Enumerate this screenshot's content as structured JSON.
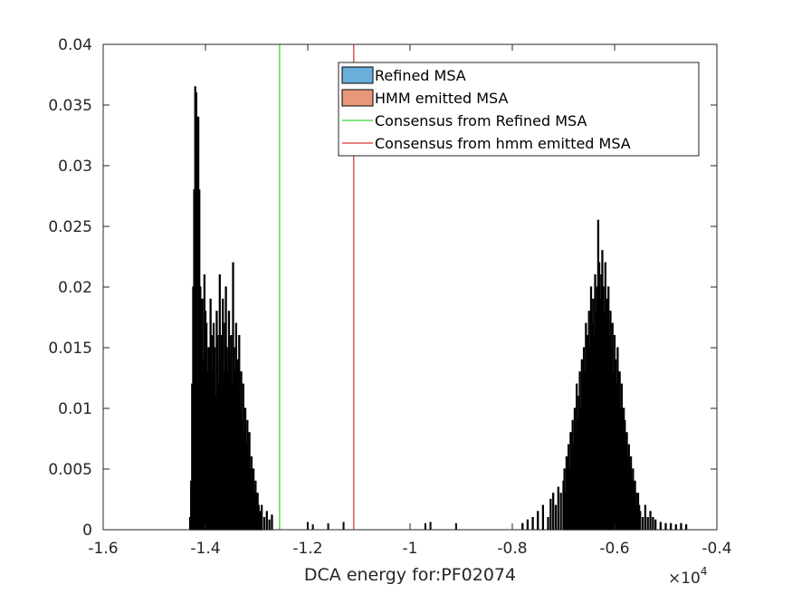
{
  "chart_data": {
    "type": "bar",
    "title": "",
    "xlabel": "DCA energy for:PF02074",
    "ylabel": "",
    "x_exponent_label": "×10",
    "x_exponent_power": "4",
    "xlim": [
      -1.6,
      -0.4
    ],
    "ylim": [
      0,
      0.04
    ],
    "x_ticks": [
      -1.6,
      -1.4,
      -1.2,
      -1,
      -0.8,
      -0.6,
      -0.4
    ],
    "x_tick_labels": [
      "-1.6",
      "-1.4",
      "-1.2",
      "-1",
      "-0.8",
      "-0.6",
      "-0.4"
    ],
    "y_ticks": [
      0,
      0.005,
      0.01,
      0.015,
      0.02,
      0.025,
      0.03,
      0.035,
      0.04
    ],
    "y_tick_labels": [
      "0",
      "0.005",
      "0.01",
      "0.015",
      "0.02",
      "0.025",
      "0.03",
      "0.035",
      "0.04"
    ],
    "grid": false,
    "legend_position": "top-right",
    "series": [
      {
        "name": "Refined MSA",
        "color": "#6aaedb",
        "x": [
          -1.43,
          -1.428,
          -1.426,
          -1.424,
          -1.422,
          -1.42,
          -1.418,
          -1.416,
          -1.414,
          -1.412,
          -1.41,
          -1.408,
          -1.406,
          -1.404,
          -1.402,
          -1.4,
          -1.398,
          -1.396,
          -1.394,
          -1.392,
          -1.39,
          -1.388,
          -1.386,
          -1.384,
          -1.382,
          -1.38,
          -1.378,
          -1.376,
          -1.374,
          -1.372,
          -1.37,
          -1.368,
          -1.366,
          -1.364,
          -1.362,
          -1.36,
          -1.358,
          -1.356,
          -1.354,
          -1.352,
          -1.35,
          -1.348,
          -1.346,
          -1.344,
          -1.342,
          -1.34,
          -1.338,
          -1.336,
          -1.334,
          -1.332,
          -1.33,
          -1.328,
          -1.326,
          -1.324,
          -1.322,
          -1.32,
          -1.318,
          -1.316,
          -1.314,
          -1.312,
          -1.31,
          -1.308,
          -1.306,
          -1.304,
          -1.302,
          -1.3,
          -1.298,
          -1.296,
          -1.294,
          -1.292,
          -1.29,
          -1.285,
          -1.28,
          -1.275,
          -1.27
        ],
        "values": [
          0.001,
          0.004,
          0.012,
          0.02,
          0.028,
          0.0365,
          0.036,
          0.031,
          0.034,
          0.028,
          0.02,
          0.016,
          0.019,
          0.014,
          0.021,
          0.018,
          0.017,
          0.013,
          0.015,
          0.012,
          0.019,
          0.016,
          0.013,
          0.017,
          0.015,
          0.011,
          0.018,
          0.016,
          0.012,
          0.021,
          0.014,
          0.016,
          0.019,
          0.013,
          0.017,
          0.02,
          0.015,
          0.013,
          0.018,
          0.014,
          0.016,
          0.012,
          0.022,
          0.015,
          0.013,
          0.017,
          0.011,
          0.014,
          0.016,
          0.01,
          0.013,
          0.009,
          0.012,
          0.008,
          0.01,
          0.007,
          0.009,
          0.006,
          0.008,
          0.005,
          0.006,
          0.004,
          0.005,
          0.003,
          0.004,
          0.002,
          0.003,
          0.002,
          0.0015,
          0.001,
          0.002,
          0.001,
          0.0015,
          0.0008,
          0.0012
        ]
      },
      {
        "name": "HMM emitted MSA",
        "color": "#e8977a",
        "x": [
          -0.78,
          -0.77,
          -0.76,
          -0.75,
          -0.74,
          -0.73,
          -0.725,
          -0.72,
          -0.715,
          -0.71,
          -0.705,
          -0.7,
          -0.698,
          -0.696,
          -0.694,
          -0.692,
          -0.69,
          -0.688,
          -0.686,
          -0.684,
          -0.682,
          -0.68,
          -0.678,
          -0.676,
          -0.674,
          -0.672,
          -0.67,
          -0.668,
          -0.666,
          -0.664,
          -0.662,
          -0.66,
          -0.658,
          -0.656,
          -0.654,
          -0.652,
          -0.65,
          -0.648,
          -0.646,
          -0.644,
          -0.642,
          -0.64,
          -0.638,
          -0.636,
          -0.634,
          -0.632,
          -0.63,
          -0.628,
          -0.626,
          -0.624,
          -0.622,
          -0.62,
          -0.618,
          -0.616,
          -0.614,
          -0.612,
          -0.61,
          -0.608,
          -0.606,
          -0.604,
          -0.602,
          -0.6,
          -0.598,
          -0.596,
          -0.594,
          -0.592,
          -0.59,
          -0.588,
          -0.586,
          -0.584,
          -0.582,
          -0.58,
          -0.578,
          -0.576,
          -0.574,
          -0.572,
          -0.57,
          -0.568,
          -0.566,
          -0.564,
          -0.562,
          -0.56,
          -0.558,
          -0.556,
          -0.554,
          -0.552,
          -0.55,
          -0.545,
          -0.54,
          -0.535,
          -0.53,
          -0.525,
          -0.52,
          -0.51,
          -0.5,
          -0.49,
          -0.48,
          -0.47,
          -0.46
        ],
        "values": [
          0.0005,
          0.0008,
          0.001,
          0.0015,
          0.002,
          0.001,
          0.0025,
          0.003,
          0.002,
          0.0035,
          0.003,
          0.004,
          0.005,
          0.003,
          0.006,
          0.004,
          0.007,
          0.005,
          0.008,
          0.006,
          0.009,
          0.007,
          0.01,
          0.008,
          0.012,
          0.009,
          0.011,
          0.013,
          0.01,
          0.014,
          0.012,
          0.015,
          0.013,
          0.017,
          0.014,
          0.016,
          0.018,
          0.015,
          0.02,
          0.017,
          0.019,
          0.016,
          0.021,
          0.018,
          0.02,
          0.0255,
          0.022,
          0.019,
          0.021,
          0.023,
          0.02,
          0.018,
          0.022,
          0.017,
          0.019,
          0.02,
          0.016,
          0.018,
          0.015,
          0.017,
          0.013,
          0.016,
          0.014,
          0.012,
          0.015,
          0.011,
          0.013,
          0.01,
          0.012,
          0.008,
          0.01,
          0.009,
          0.007,
          0.008,
          0.006,
          0.007,
          0.005,
          0.006,
          0.004,
          0.005,
          0.003,
          0.004,
          0.003,
          0.002,
          0.003,
          0.002,
          0.0015,
          0.001,
          0.002,
          0.001,
          0.0015,
          0.001,
          0.0008,
          0.0006,
          0.0005,
          0.0005,
          0.0004,
          0.0005,
          0.0004
        ]
      }
    ],
    "reference_lines": [
      {
        "name": "Consensus from Refined MSA",
        "color": "#00cc00",
        "x": -1.255
      },
      {
        "name": "Consensus from hmm emitted MSA",
        "color": "#cc0000",
        "x": -1.11
      }
    ],
    "sparse_marks": [
      {
        "x": -1.2,
        "value": 0.0006
      },
      {
        "x": -1.19,
        "value": 0.0004
      },
      {
        "x": -1.16,
        "value": 0.0005
      },
      {
        "x": -1.13,
        "value": 0.0006
      },
      {
        "x": -0.97,
        "value": 0.0005
      },
      {
        "x": -0.96,
        "value": 0.0006
      },
      {
        "x": -0.91,
        "value": 0.0005
      }
    ]
  }
}
